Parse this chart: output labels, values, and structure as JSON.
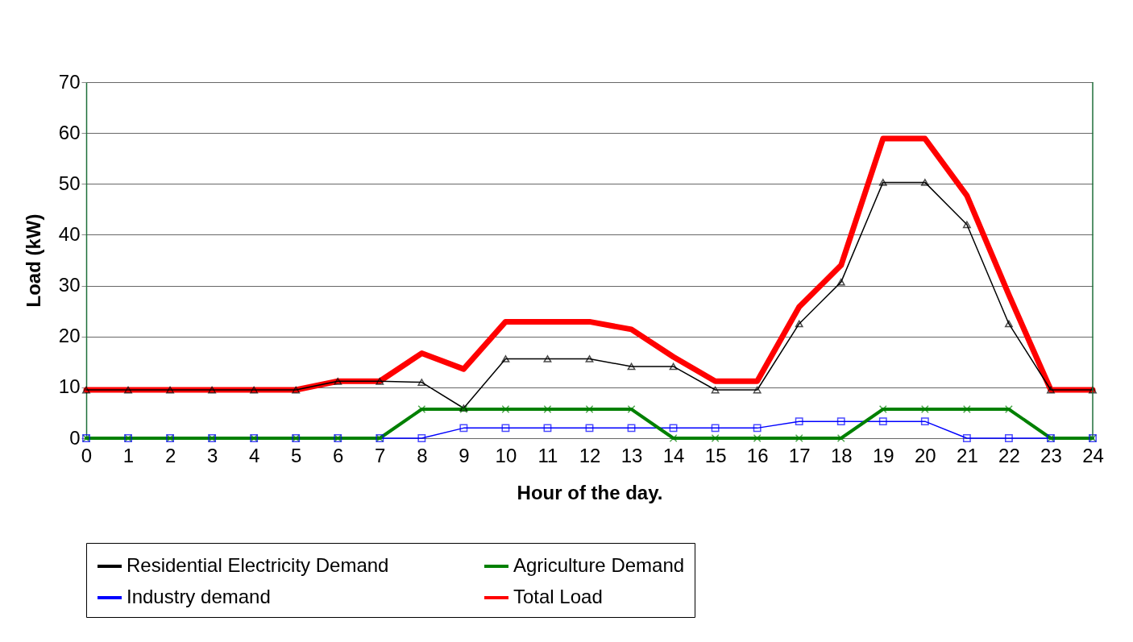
{
  "chart_data": {
    "type": "line",
    "xlabel": "Hour of the day.",
    "ylabel": "Load (kW)",
    "x": [
      0,
      1,
      2,
      3,
      4,
      5,
      6,
      7,
      8,
      9,
      10,
      11,
      12,
      13,
      14,
      15,
      16,
      17,
      18,
      19,
      20,
      21,
      22,
      23,
      24
    ],
    "xlim": [
      0,
      24
    ],
    "xticks": [
      0,
      1,
      2,
      3,
      4,
      5,
      6,
      7,
      8,
      9,
      10,
      11,
      12,
      13,
      14,
      15,
      16,
      17,
      18,
      19,
      20,
      21,
      22,
      23,
      24
    ],
    "ylim": [
      0,
      70
    ],
    "yticks": [
      0,
      10,
      20,
      30,
      40,
      50,
      60,
      70
    ],
    "grid": "y",
    "legend": "bottom",
    "series": [
      {
        "name": "Residential Electricity Demand",
        "color": "#000000",
        "marker": "triangle",
        "values": [
          9.5,
          9.5,
          9.5,
          9.5,
          9.5,
          9.5,
          11.2,
          11.2,
          11,
          5.9,
          15.6,
          15.6,
          15.6,
          14.1,
          14.1,
          9.5,
          9.5,
          22.5,
          30.7,
          50.3,
          50.3,
          42,
          22.5,
          9.5,
          9.5
        ]
      },
      {
        "name": "Agriculture Demand",
        "color": "#008000",
        "marker": "cross",
        "values": [
          0,
          0,
          0,
          0,
          0,
          0,
          0,
          0,
          5.7,
          5.7,
          5.7,
          5.7,
          5.7,
          5.7,
          0,
          0,
          0,
          0,
          0,
          5.7,
          5.7,
          5.7,
          5.7,
          0,
          0
        ]
      },
      {
        "name": "Industry demand",
        "color": "#0000ff",
        "marker": "square",
        "values": [
          0,
          0,
          0,
          0,
          0,
          0,
          0,
          0,
          0,
          2,
          2,
          2,
          2,
          2,
          2,
          2,
          2,
          3.3,
          3.3,
          3.3,
          3.3,
          0,
          0,
          0,
          0
        ]
      },
      {
        "name": "Total Load",
        "color": "#ff0000",
        "marker": "none",
        "values": [
          9.5,
          9.5,
          9.5,
          9.5,
          9.5,
          9.5,
          11.2,
          11.2,
          16.7,
          13.6,
          22.9,
          22.9,
          22.9,
          21.4,
          16,
          11.2,
          11.2,
          25.8,
          34,
          58.9,
          58.9,
          47.7,
          28.2,
          9.5,
          9.5
        ]
      }
    ]
  }
}
